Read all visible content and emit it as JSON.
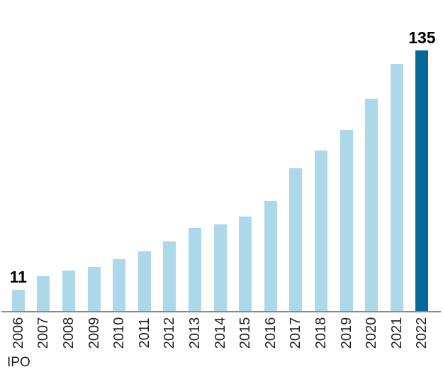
{
  "chart_data": {
    "type": "bar",
    "title": "",
    "xlabel": "",
    "ylabel": "",
    "categories": [
      "2006",
      "2007",
      "2008",
      "2009",
      "2010",
      "2011",
      "2012",
      "2013",
      "2014",
      "2015",
      "2016",
      "2017",
      "2018",
      "2019",
      "2020",
      "2021",
      "2022"
    ],
    "values": [
      11,
      18,
      21,
      23,
      27,
      31,
      36,
      43,
      45,
      49,
      57,
      74,
      83,
      94,
      110,
      128,
      135
    ],
    "highlight_index": 16,
    "data_labels": [
      {
        "index": 0,
        "text": "11"
      },
      {
        "index": 16,
        "text": "135"
      }
    ],
    "footnote": "IPO",
    "ylim": [
      0,
      135
    ],
    "grid": false,
    "legend": "none",
    "tick_label_rotation_deg": 90,
    "colors": {
      "bar": "#ACD8EA",
      "bar_highlight": "#04699A",
      "axis_line": "#8A8A8A",
      "tick_label": "#1F1F1F",
      "data_label": "#000000",
      "footnote": "#1F1F1F",
      "background": "#FFFFFF"
    }
  }
}
